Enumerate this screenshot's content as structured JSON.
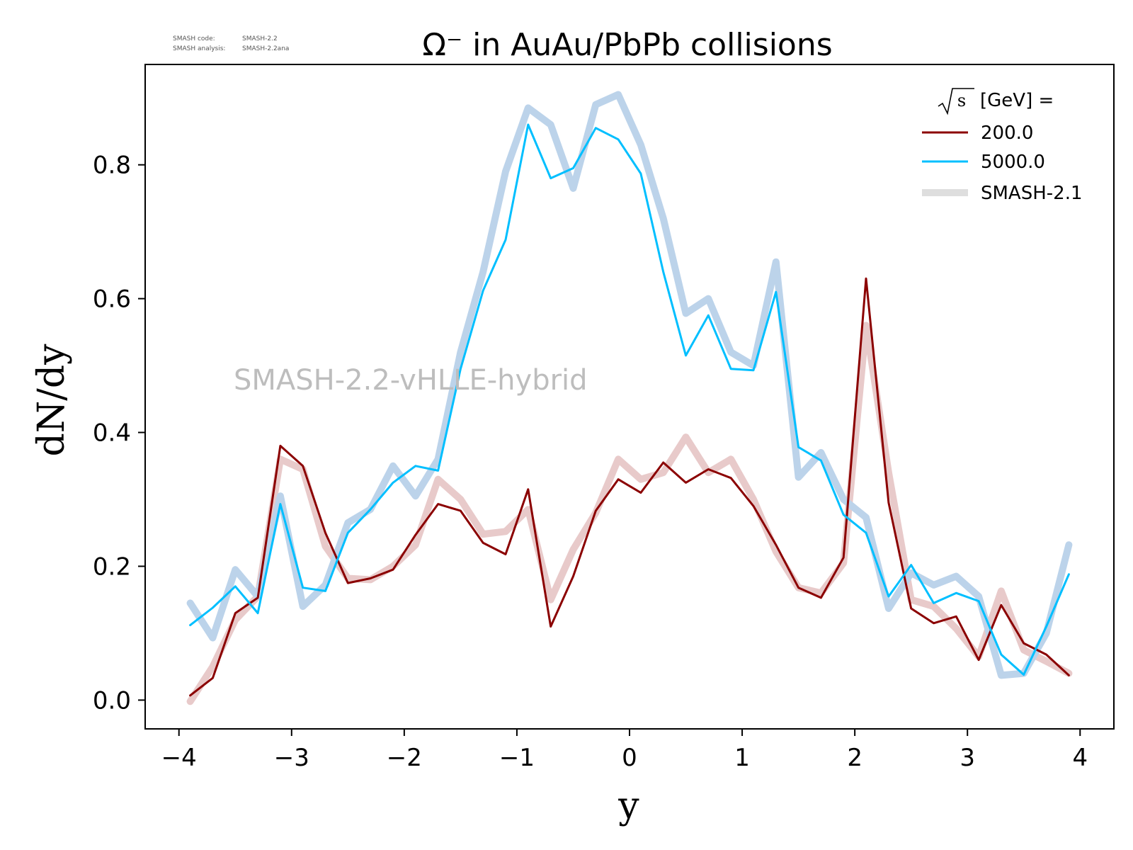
{
  "info": {
    "code_label": "SMASH code:",
    "code_value": "SMASH-2.2",
    "analysis_label": "SMASH analysis:",
    "analysis_value": "SMASH-2.2ana"
  },
  "watermark": "SMASH-2.2-vHLLE-hybrid",
  "chart_data": {
    "type": "line",
    "title": "Ω⁻ in AuAu/PbPb collisions",
    "xlabel": "y",
    "ylabel": "dN/dy",
    "xlim": [
      -4.3,
      4.3
    ],
    "ylim": [
      -0.043,
      0.95
    ],
    "xticks": [
      -4,
      -3,
      -2,
      -1,
      0,
      1,
      2,
      3,
      4
    ],
    "xtick_labels": [
      "−4",
      "−3",
      "−2",
      "−1",
      "0",
      "1",
      "2",
      "3",
      "4"
    ],
    "yticks": [
      0.0,
      0.2,
      0.4,
      0.6,
      0.8
    ],
    "ytick_labels": [
      "0.0",
      "0.2",
      "0.4",
      "0.6",
      "0.8"
    ],
    "grid": false,
    "legend": {
      "placement": "top-right",
      "title_suffix": " [GeV] =",
      "entries": [
        "200.0",
        "5000.0",
        "SMASH-2.1"
      ]
    },
    "x": [
      -3.9,
      -3.7,
      -3.5,
      -3.3,
      -3.1,
      -2.9,
      -2.7,
      -2.5,
      -2.3,
      -2.1,
      -1.9,
      -1.7,
      -1.5,
      -1.3,
      -1.1,
      -0.9,
      -0.7,
      -0.5,
      -0.3,
      -0.1,
      0.1,
      0.3,
      0.5,
      0.7,
      0.9,
      1.1,
      1.3,
      1.5,
      1.7,
      1.9,
      2.1,
      2.3,
      2.5,
      2.7,
      2.9,
      3.1,
      3.3,
      3.5,
      3.7,
      3.9
    ],
    "series": [
      {
        "name": "200.0",
        "color": "#8b0000",
        "style": "thin",
        "values": [
          0.007,
          0.033,
          0.13,
          0.153,
          0.38,
          0.35,
          0.25,
          0.175,
          0.182,
          0.195,
          0.247,
          0.293,
          0.283,
          0.235,
          0.218,
          0.315,
          0.11,
          0.185,
          0.283,
          0.33,
          0.31,
          0.355,
          0.325,
          0.345,
          0.332,
          0.29,
          0.232,
          0.168,
          0.153,
          0.213,
          0.63,
          0.295,
          0.137,
          0.115,
          0.125,
          0.06,
          0.142,
          0.085,
          0.068,
          0.037
        ]
      },
      {
        "name": "5000.0",
        "color": "#00bfff",
        "style": "thin",
        "values": [
          0.112,
          0.138,
          0.17,
          0.13,
          0.293,
          0.168,
          0.163,
          0.25,
          0.285,
          0.325,
          0.35,
          0.343,
          0.495,
          0.612,
          0.688,
          0.86,
          0.78,
          0.795,
          0.855,
          0.838,
          0.787,
          0.64,
          0.515,
          0.575,
          0.495,
          0.493,
          0.61,
          0.378,
          0.358,
          0.277,
          0.25,
          0.155,
          0.202,
          0.145,
          0.16,
          0.148,
          0.068,
          0.038,
          0.11,
          0.188
        ]
      },
      {
        "name": "SMASH-2.1",
        "color": "#e8caca",
        "style": "thick",
        "reference_for": "200.0",
        "values": [
          -0.002,
          0.05,
          0.12,
          0.155,
          0.36,
          0.345,
          0.23,
          0.182,
          0.18,
          0.2,
          0.232,
          0.33,
          0.3,
          0.248,
          0.252,
          0.285,
          0.15,
          0.225,
          0.28,
          0.36,
          0.33,
          0.34,
          0.393,
          0.34,
          0.36,
          0.3,
          0.222,
          0.168,
          0.16,
          0.205,
          0.56,
          0.34,
          0.15,
          0.14,
          0.107,
          0.065,
          0.163,
          0.075,
          0.058,
          0.04
        ]
      },
      {
        "name": "SMASH-2.1",
        "color": "#bcd3ea",
        "style": "thick",
        "reference_for": "5000.0",
        "values": [
          0.145,
          0.093,
          0.195,
          0.155,
          0.305,
          0.14,
          0.172,
          0.265,
          0.285,
          0.35,
          0.305,
          0.36,
          0.52,
          0.64,
          0.79,
          0.885,
          0.86,
          0.765,
          0.89,
          0.905,
          0.83,
          0.72,
          0.578,
          0.6,
          0.52,
          0.5,
          0.655,
          0.333,
          0.37,
          0.3,
          0.273,
          0.137,
          0.19,
          0.172,
          0.185,
          0.155,
          0.037,
          0.04,
          0.1,
          0.232
        ]
      }
    ]
  }
}
